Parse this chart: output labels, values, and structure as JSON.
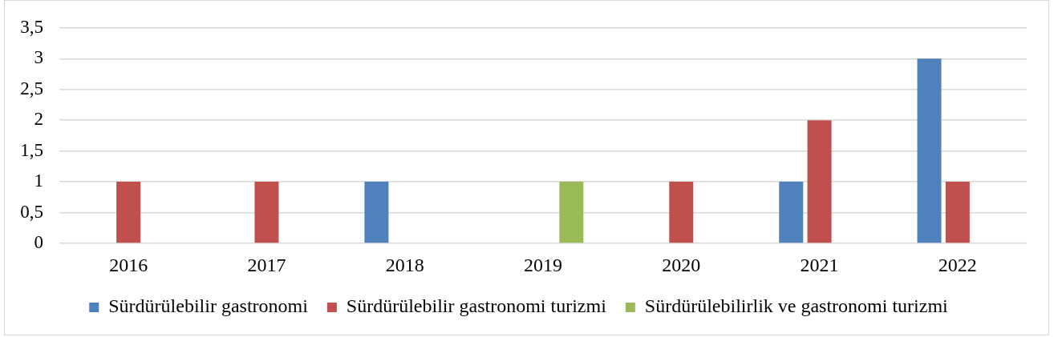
{
  "chart_data": {
    "type": "bar",
    "categories": [
      "2016",
      "2017",
      "2018",
      "2019",
      "2020",
      "2021",
      "2022"
    ],
    "series": [
      {
        "name": "Sürdürülebilir gastronomi",
        "color": "#4f81bd",
        "values": [
          null,
          null,
          1,
          null,
          null,
          1,
          3
        ]
      },
      {
        "name": "Sürdürülebilir gastronomi turizmi",
        "color": "#c0504d",
        "values": [
          1,
          1,
          null,
          null,
          1,
          2,
          1
        ]
      },
      {
        "name": "Sürdürülebilirlik ve gastronomi turizmi",
        "color": "#9bbb59",
        "values": [
          null,
          null,
          null,
          1,
          null,
          null,
          null
        ]
      }
    ],
    "ylim": [
      0,
      3.5
    ],
    "yticks": [
      0,
      {
        "value": 0.5,
        "label": "0,5"
      },
      1,
      {
        "value": 1.5,
        "label": "1,5"
      },
      2,
      {
        "value": 2.5,
        "label": "2,5"
      },
      3,
      {
        "value": 3.5,
        "label": "3,5"
      }
    ],
    "grid": "y",
    "legend": "bottom"
  }
}
